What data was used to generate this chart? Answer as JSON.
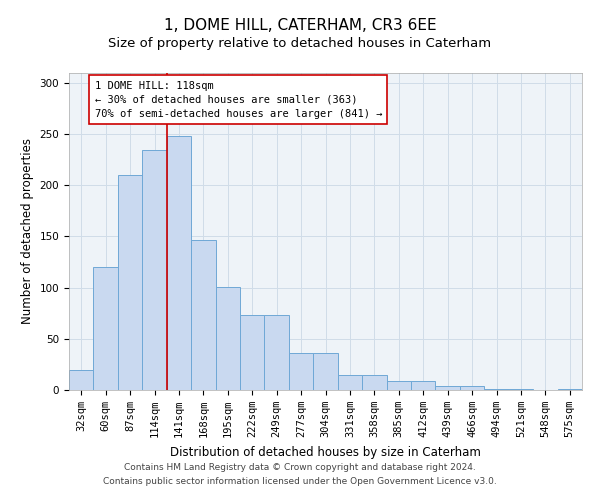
{
  "title1": "1, DOME HILL, CATERHAM, CR3 6EE",
  "title2": "Size of property relative to detached houses in Caterham",
  "xlabel": "Distribution of detached houses by size in Caterham",
  "ylabel": "Number of detached properties",
  "bin_labels": [
    "32sqm",
    "60sqm",
    "87sqm",
    "114sqm",
    "141sqm",
    "168sqm",
    "195sqm",
    "222sqm",
    "249sqm",
    "277sqm",
    "304sqm",
    "331sqm",
    "358sqm",
    "385sqm",
    "412sqm",
    "439sqm",
    "466sqm",
    "494sqm",
    "521sqm",
    "548sqm",
    "575sqm"
  ],
  "bar_values": [
    20,
    120,
    210,
    234,
    248,
    146,
    101,
    73,
    73,
    36,
    36,
    15,
    15,
    9,
    9,
    4,
    4,
    1,
    1,
    0,
    1
  ],
  "bar_color": "#c9d9f0",
  "bar_edge_color": "#6fa8d6",
  "vline_x": 3.5,
  "vline_color": "#cc0000",
  "annotation_text": "1 DOME HILL: 118sqm\n← 30% of detached houses are smaller (363)\n70% of semi-detached houses are larger (841) →",
  "annotation_box_edge_color": "#cc0000",
  "annotation_box_facecolor": "#ffffff",
  "ylim": [
    0,
    310
  ],
  "yticks": [
    0,
    50,
    100,
    150,
    200,
    250,
    300
  ],
  "grid_color": "#d0dce8",
  "background_color": "#eef3f8",
  "footer1": "Contains HM Land Registry data © Crown copyright and database right 2024.",
  "footer2": "Contains public sector information licensed under the Open Government Licence v3.0.",
  "title1_fontsize": 11,
  "title2_fontsize": 9.5,
  "axis_label_fontsize": 8.5,
  "tick_fontsize": 7.5,
  "annotation_fontsize": 7.5,
  "footer_fontsize": 6.5
}
